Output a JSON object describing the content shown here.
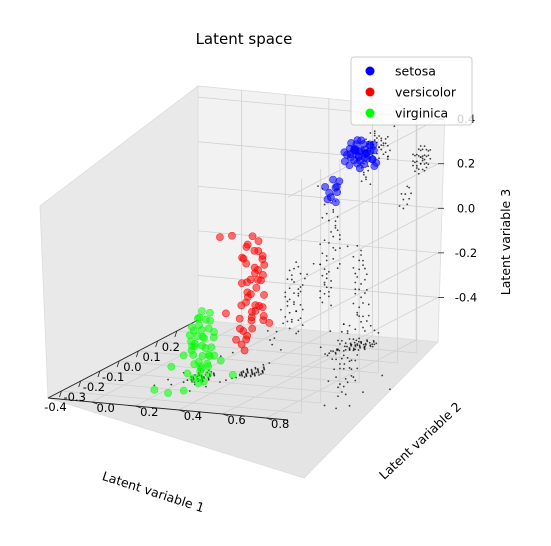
{
  "chart_data": {
    "type": "scatter",
    "projection": "3d",
    "title": "Latent space",
    "xlabel": "Latent variable 1",
    "ylabel": "Latent variable 2",
    "zlabel": "Latent variable 3",
    "xlim": [
      -0.47,
      0.31
    ],
    "ylim": [
      -0.2,
      0.9
    ],
    "zlim": [
      -0.6,
      0.45
    ],
    "xticks": [
      "-0.4",
      "-0.3",
      "-0.2",
      "-0.1",
      "0.0",
      "0.1",
      "0.2"
    ],
    "yticks": [
      "0.0",
      "0.2",
      "0.4",
      "0.6",
      "0.8"
    ],
    "zticks": [
      "-0.4",
      "-0.2",
      "0.0",
      "0.2",
      "0.4"
    ],
    "grid": true,
    "legend_position": "top-right",
    "series": [
      {
        "name": "setosa",
        "color": "#0000ff",
        "points": [
          [
            0.22,
            0.62,
            0.27
          ],
          [
            0.23,
            0.64,
            0.26
          ],
          [
            0.24,
            0.63,
            0.25
          ],
          [
            0.21,
            0.61,
            0.28
          ],
          [
            0.2,
            0.64,
            0.24
          ],
          [
            0.25,
            0.6,
            0.26
          ],
          [
            0.22,
            0.58,
            0.24
          ],
          [
            0.23,
            0.66,
            0.27
          ],
          [
            0.19,
            0.62,
            0.29
          ],
          [
            0.24,
            0.66,
            0.23
          ],
          [
            0.26,
            0.62,
            0.22
          ],
          [
            0.21,
            0.59,
            0.31
          ],
          [
            0.2,
            0.58,
            0.26
          ],
          [
            0.25,
            0.64,
            0.29
          ],
          [
            0.23,
            0.6,
            0.21
          ],
          [
            0.18,
            0.63,
            0.25
          ],
          [
            0.22,
            0.67,
            0.3
          ],
          [
            0.26,
            0.65,
            0.26
          ],
          [
            0.24,
            0.58,
            0.27
          ],
          [
            0.21,
            0.65,
            0.22
          ],
          [
            0.27,
            0.61,
            0.24
          ],
          [
            0.19,
            0.6,
            0.22
          ],
          [
            0.22,
            0.61,
            0.32
          ],
          [
            0.24,
            0.67,
            0.2
          ],
          [
            0.2,
            0.66,
            0.29
          ],
          [
            0.25,
            0.59,
            0.23
          ],
          [
            0.23,
            0.63,
            0.3
          ],
          [
            0.18,
            0.65,
            0.27
          ],
          [
            0.15,
            0.56,
            0.17
          ],
          [
            0.14,
            0.58,
            0.14
          ],
          [
            0.13,
            0.56,
            0.12
          ],
          [
            0.16,
            0.57,
            0.11
          ],
          [
            0.12,
            0.55,
            0.15
          ],
          [
            0.15,
            0.55,
            0.09
          ],
          [
            0.17,
            0.56,
            0.13
          ],
          [
            0.11,
            0.57,
            0.1
          ],
          [
            0.16,
            0.58,
            0.16
          ],
          [
            0.13,
            0.59,
            0.08
          ],
          [
            0.05,
            0.7,
            0.35
          ],
          [
            0.26,
            0.57,
            0.28
          ],
          [
            0.22,
            0.68,
            0.24
          ],
          [
            0.2,
            0.57,
            0.23
          ],
          [
            0.24,
            0.61,
            0.31
          ],
          [
            0.21,
            0.63,
            0.2
          ],
          [
            0.27,
            0.64,
            0.28
          ],
          [
            0.19,
            0.67,
            0.26
          ],
          [
            0.23,
            0.57,
            0.25
          ],
          [
            0.25,
            0.67,
            0.21
          ],
          [
            0.22,
            0.6,
            0.27
          ],
          [
            0.18,
            0.61,
            0.3
          ]
        ]
      },
      {
        "name": "versicolor",
        "color": "#ff0000",
        "points": [
          [
            -0.1,
            0.42,
            -0.05
          ],
          [
            -0.08,
            0.44,
            -0.08
          ],
          [
            -0.12,
            0.4,
            -0.1
          ],
          [
            -0.09,
            0.38,
            -0.03
          ],
          [
            -0.11,
            0.43,
            -0.12
          ],
          [
            -0.07,
            0.41,
            -0.15
          ],
          [
            -0.13,
            0.39,
            -0.07
          ],
          [
            -0.1,
            0.45,
            -0.18
          ],
          [
            -0.06,
            0.4,
            -0.2
          ],
          [
            -0.09,
            0.42,
            -0.22
          ],
          [
            -0.12,
            0.44,
            -0.14
          ],
          [
            -0.08,
            0.37,
            -0.25
          ],
          [
            -0.11,
            0.39,
            -0.28
          ],
          [
            -0.07,
            0.43,
            -0.1
          ],
          [
            -0.13,
            0.41,
            -0.02
          ],
          [
            -0.1,
            0.36,
            -0.3
          ],
          [
            -0.09,
            0.4,
            -0.33
          ],
          [
            -0.05,
            0.42,
            -0.27
          ],
          [
            -0.12,
            0.37,
            -0.35
          ],
          [
            -0.08,
            0.44,
            -0.31
          ],
          [
            -0.11,
            0.42,
            0.02
          ],
          [
            -0.07,
            0.38,
            -0.38
          ],
          [
            -0.1,
            0.41,
            -0.4
          ],
          [
            -0.06,
            0.39,
            -0.34
          ],
          [
            -0.13,
            0.43,
            -0.23
          ],
          [
            -0.09,
            0.36,
            -0.42
          ],
          [
            -0.04,
            0.41,
            -0.37
          ],
          [
            -0.12,
            0.4,
            -0.44
          ],
          [
            -0.08,
            0.42,
            -0.06
          ],
          [
            -0.1,
            0.39,
            -0.26
          ],
          [
            -0.2,
            0.35,
            0.05
          ],
          [
            -0.16,
            0.37,
            0.04
          ],
          [
            -0.18,
            0.36,
            -0.3
          ],
          [
            -0.15,
            0.38,
            -0.43
          ],
          [
            -0.11,
            0.37,
            -0.47
          ],
          [
            -0.07,
            0.36,
            -0.45
          ],
          [
            -0.02,
            0.39,
            -0.4
          ],
          [
            0.0,
            0.4,
            -0.42
          ],
          [
            -0.14,
            0.41,
            -0.48
          ],
          [
            -0.09,
            0.45,
            -0.16
          ],
          [
            -0.12,
            0.38,
            -0.19
          ],
          [
            -0.06,
            0.43,
            -0.13
          ],
          [
            -0.1,
            0.37,
            -0.09
          ],
          [
            -0.08,
            0.39,
            -0.36
          ],
          [
            -0.11,
            0.45,
            -0.29
          ],
          [
            -0.07,
            0.36,
            -0.21
          ],
          [
            -0.13,
            0.38,
            -0.39
          ],
          [
            -0.09,
            0.43,
            -0.01
          ],
          [
            -0.05,
            0.38,
            -0.32
          ],
          [
            -0.12,
            0.42,
            -0.17
          ]
        ]
      },
      {
        "name": "virginica",
        "color": "#00ff00",
        "points": [
          [
            -0.18,
            0.25,
            -0.3
          ],
          [
            -0.16,
            0.27,
            -0.35
          ],
          [
            -0.2,
            0.23,
            -0.38
          ],
          [
            -0.17,
            0.22,
            -0.42
          ],
          [
            -0.19,
            0.26,
            -0.45
          ],
          [
            -0.15,
            0.24,
            -0.48
          ],
          [
            -0.21,
            0.28,
            -0.4
          ],
          [
            -0.18,
            0.21,
            -0.5
          ],
          [
            -0.14,
            0.25,
            -0.52
          ],
          [
            -0.17,
            0.27,
            -0.55
          ],
          [
            -0.2,
            0.22,
            -0.47
          ],
          [
            -0.16,
            0.23,
            -0.57
          ],
          [
            -0.19,
            0.24,
            -0.33
          ],
          [
            -0.13,
            0.26,
            -0.44
          ],
          [
            -0.22,
            0.25,
            -0.52
          ],
          [
            -0.15,
            0.21,
            -0.38
          ],
          [
            -0.18,
            0.28,
            -0.58
          ],
          [
            -0.21,
            0.23,
            -0.36
          ],
          [
            -0.12,
            0.24,
            -0.49
          ],
          [
            -0.17,
            0.25,
            -0.62
          ],
          [
            -0.24,
            0.27,
            -0.43
          ],
          [
            -0.16,
            0.2,
            -0.46
          ],
          [
            -0.19,
            0.22,
            -0.6
          ],
          [
            -0.14,
            0.27,
            -0.41
          ],
          [
            -0.2,
            0.26,
            -0.56
          ],
          [
            -0.11,
            0.22,
            -0.53
          ],
          [
            -0.23,
            0.21,
            -0.48
          ],
          [
            -0.15,
            0.26,
            -0.32
          ],
          [
            -0.18,
            0.2,
            -0.44
          ],
          [
            -0.21,
            0.26,
            -0.61
          ],
          [
            -0.28,
            0.12,
            -0.62
          ],
          [
            -0.22,
            0.13,
            -0.66
          ],
          [
            -0.15,
            0.14,
            -0.68
          ],
          [
            -0.08,
            0.15,
            -0.65
          ],
          [
            0.02,
            0.16,
            -0.62
          ],
          [
            0.06,
            0.18,
            -0.7
          ],
          [
            -0.3,
            0.3,
            -0.35
          ],
          [
            -0.25,
            0.33,
            -0.3
          ],
          [
            -0.26,
            0.18,
            -0.52
          ],
          [
            -0.12,
            0.19,
            -0.58
          ],
          [
            -0.19,
            0.29,
            -0.37
          ],
          [
            -0.17,
            0.24,
            -0.39
          ],
          [
            -0.13,
            0.23,
            -0.56
          ],
          [
            -0.2,
            0.27,
            -0.49
          ],
          [
            -0.16,
            0.22,
            -0.34
          ],
          [
            -0.22,
            0.24,
            -0.44
          ],
          [
            -0.14,
            0.2,
            -0.55
          ],
          [
            -0.18,
            0.26,
            -0.42
          ],
          [
            -0.21,
            0.21,
            -0.57
          ],
          [
            -0.15,
            0.28,
            -0.51
          ]
        ]
      }
    ],
    "projection_points": {
      "color": "#000000",
      "description_none": true
    }
  }
}
